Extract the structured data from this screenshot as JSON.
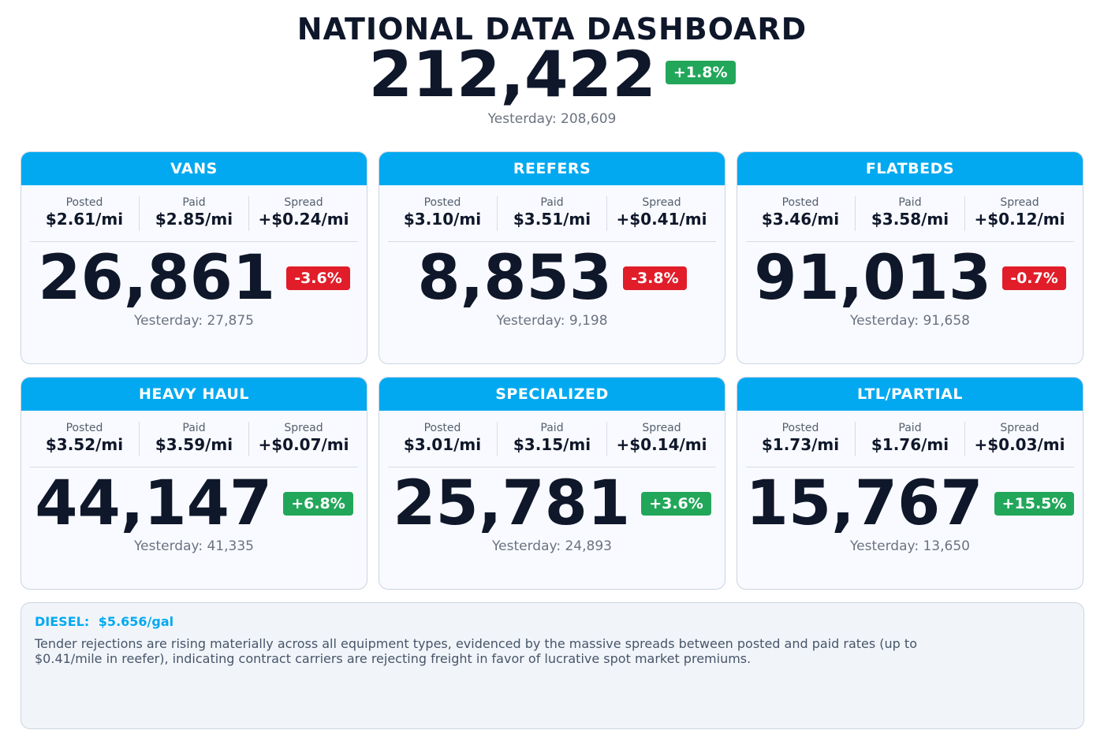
{
  "header": {
    "title": "NATIONAL DATA DASHBOARD",
    "total": "212,422",
    "change": "+1.8%",
    "change_dir": "up",
    "yesterday": "Yesterday: 208,609"
  },
  "labels": {
    "posted": "Posted",
    "paid": "Paid",
    "spread": "Spread"
  },
  "cards": [
    {
      "name": "VANS",
      "posted": "$2.61/mi",
      "paid": "$2.85/mi",
      "spread": "+$0.24/mi",
      "count": "26,861",
      "change": "-3.6%",
      "change_dir": "down",
      "yesterday": "Yesterday: 27,875"
    },
    {
      "name": "REEFERS",
      "posted": "$3.10/mi",
      "paid": "$3.51/mi",
      "spread": "+$0.41/mi",
      "count": "8,853",
      "change": "-3.8%",
      "change_dir": "down",
      "yesterday": "Yesterday: 9,198"
    },
    {
      "name": "FLATBEDS",
      "posted": "$3.46/mi",
      "paid": "$3.58/mi",
      "spread": "+$0.12/mi",
      "count": "91,013",
      "change": "-0.7%",
      "change_dir": "down",
      "yesterday": "Yesterday: 91,658"
    },
    {
      "name": "HEAVY HAUL",
      "posted": "$3.52/mi",
      "paid": "$3.59/mi",
      "spread": "+$0.07/mi",
      "count": "44,147",
      "change": "+6.8%",
      "change_dir": "up",
      "yesterday": "Yesterday: 41,335"
    },
    {
      "name": "SPECIALIZED",
      "posted": "$3.01/mi",
      "paid": "$3.15/mi",
      "spread": "+$0.14/mi",
      "count": "25,781",
      "change": "+3.6%",
      "change_dir": "up",
      "yesterday": "Yesterday: 24,893"
    },
    {
      "name": "LTL/PARTIAL",
      "posted": "$1.73/mi",
      "paid": "$1.76/mi",
      "spread": "+$0.03/mi",
      "count": "15,767",
      "change": "+15.5%",
      "change_dir": "up",
      "yesterday": "Yesterday: 13,650"
    }
  ],
  "diesel": {
    "label": "DIESEL:",
    "price": "$5.656/gal",
    "commentary": "Tender rejections are rising materially across all equipment types, evidenced by the massive spreads between posted and paid rates (up to $0.41/mile in reefer), indicating contract carriers are rejecting freight in favor of lucrative spot market premiums."
  },
  "colors": {
    "header": "#03a9f0",
    "up": "#22a75a",
    "down": "#e11d2a",
    "text": "#0f172a",
    "muted": "#6b7280"
  }
}
